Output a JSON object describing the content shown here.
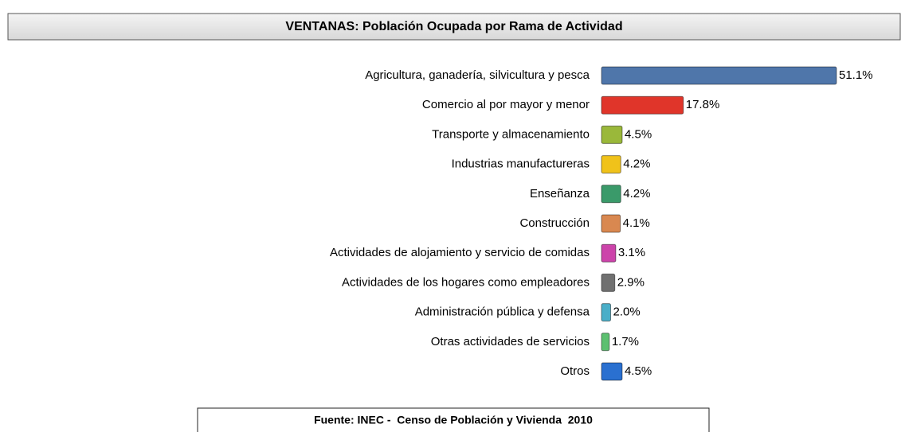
{
  "chart_data": {
    "type": "bar",
    "orientation": "horizontal",
    "title": "VENTANAS: Población Ocupada por Rama de Actividad",
    "categories": [
      "Agricultura, ganadería, silvicultura y pesca",
      "Comercio al por mayor y menor",
      "Transporte y almacenamiento",
      "Industrias manufactureras",
      "Enseñanza",
      "Construcción",
      "Actividades de alojamiento y servicio de comidas",
      "Actividades de los hogares como empleadores",
      "Administración pública y defensa",
      "Otras actividades de servicios",
      "Otros"
    ],
    "values": [
      51.1,
      17.8,
      4.5,
      4.2,
      4.2,
      4.1,
      3.1,
      2.9,
      2.0,
      1.7,
      4.5
    ],
    "value_labels": [
      "51.1%",
      "17.8%",
      "4.5%",
      "4.2%",
      "4.2%",
      "4.1%",
      "3.1%",
      "2.9%",
      "2.0%",
      "1.7%",
      "4.5%"
    ],
    "colors": [
      "#4f76aa",
      "#e0352a",
      "#9ab83a",
      "#f0c21a",
      "#3a9a6a",
      "#d98850",
      "#cc44aa",
      "#707070",
      "#4aaec8",
      "#5cc070",
      "#2a70d0"
    ],
    "source": "Fuente: INEC -  Censo de Población y Vivienda  2010"
  }
}
